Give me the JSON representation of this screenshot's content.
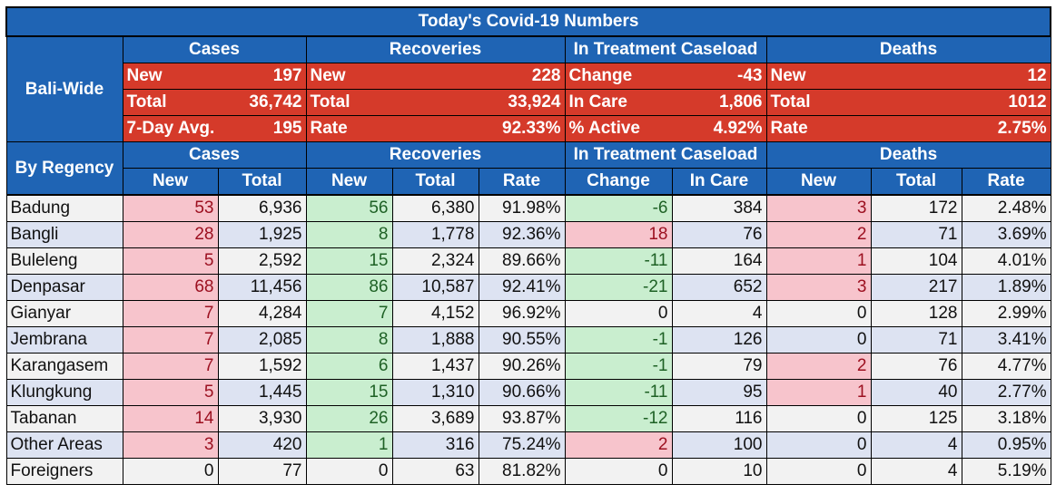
{
  "title": "Today's Covid-19 Numbers",
  "sections": {
    "cases": "Cases",
    "recoveries": "Recoveries",
    "treatment": "In Treatment Caseload",
    "deaths": "Deaths"
  },
  "bali_wide": {
    "label": "Bali-Wide",
    "rows": [
      {
        "cases_label": "New",
        "cases_value": "197",
        "rec_label": "New",
        "rec_value": "228",
        "treat_label": "Change",
        "treat_value": "-43",
        "deaths_label": "New",
        "deaths_value": "12"
      },
      {
        "cases_label": "Total",
        "cases_value": "36,742",
        "rec_label": "Total",
        "rec_value": "33,924",
        "treat_label": "In Care",
        "treat_value": "1,806",
        "deaths_label": "Total",
        "deaths_value": "1012"
      },
      {
        "cases_label": "7-Day Avg.",
        "cases_value": "195",
        "rec_label": "Rate",
        "rec_value": "92.33%",
        "treat_label": "% Active",
        "treat_value": "4.92%",
        "deaths_label": "Rate",
        "deaths_value": "2.75%"
      }
    ]
  },
  "by_regency": {
    "label": "By Regency",
    "columns": [
      "New",
      "Total",
      "New",
      "Total",
      "Rate",
      "Change",
      "In Care",
      "New",
      "Total",
      "Rate"
    ],
    "rows": [
      {
        "name": "Badung",
        "values": [
          "53",
          "6,936",
          "56",
          "6,380",
          "91.98%",
          "-6",
          "384",
          "3",
          "172",
          "2.48%"
        ],
        "hl": [
          "p",
          "",
          "g",
          "",
          "",
          "g",
          "",
          "p",
          "",
          ""
        ]
      },
      {
        "name": "Bangli",
        "values": [
          "28",
          "1,925",
          "8",
          "1,778",
          "92.36%",
          "18",
          "76",
          "2",
          "71",
          "3.69%"
        ],
        "hl": [
          "p",
          "",
          "g",
          "",
          "",
          "p",
          "",
          "p",
          "",
          ""
        ]
      },
      {
        "name": "Buleleng",
        "values": [
          "5",
          "2,592",
          "15",
          "2,324",
          "89.66%",
          "-11",
          "164",
          "1",
          "104",
          "4.01%"
        ],
        "hl": [
          "p",
          "",
          "g",
          "",
          "",
          "g",
          "",
          "p",
          "",
          ""
        ]
      },
      {
        "name": "Denpasar",
        "values": [
          "68",
          "11,456",
          "86",
          "10,587",
          "92.41%",
          "-21",
          "652",
          "3",
          "217",
          "1.89%"
        ],
        "hl": [
          "p",
          "",
          "g",
          "",
          "",
          "g",
          "",
          "p",
          "",
          ""
        ]
      },
      {
        "name": "Gianyar",
        "values": [
          "7",
          "4,284",
          "7",
          "4,152",
          "96.92%",
          "0",
          "4",
          "0",
          "128",
          "2.99%"
        ],
        "hl": [
          "p",
          "",
          "g",
          "",
          "",
          "",
          "",
          "",
          "",
          ""
        ]
      },
      {
        "name": "Jembrana",
        "values": [
          "7",
          "2,085",
          "8",
          "1,888",
          "90.55%",
          "-1",
          "126",
          "0",
          "71",
          "3.41%"
        ],
        "hl": [
          "p",
          "",
          "g",
          "",
          "",
          "g",
          "",
          "",
          "",
          ""
        ]
      },
      {
        "name": "Karangasem",
        "values": [
          "7",
          "1,592",
          "6",
          "1,437",
          "90.26%",
          "-1",
          "79",
          "2",
          "76",
          "4.77%"
        ],
        "hl": [
          "p",
          "",
          "g",
          "",
          "",
          "g",
          "",
          "p",
          "",
          ""
        ]
      },
      {
        "name": "Klungkung",
        "values": [
          "5",
          "1,445",
          "15",
          "1,310",
          "90.66%",
          "-11",
          "95",
          "1",
          "40",
          "2.77%"
        ],
        "hl": [
          "p",
          "",
          "g",
          "",
          "",
          "g",
          "",
          "p",
          "",
          ""
        ]
      },
      {
        "name": "Tabanan",
        "values": [
          "14",
          "3,930",
          "26",
          "3,689",
          "93.87%",
          "-12",
          "116",
          "0",
          "125",
          "3.18%"
        ],
        "hl": [
          "p",
          "",
          "g",
          "",
          "",
          "g",
          "",
          "",
          "",
          ""
        ]
      },
      {
        "name": "Other Areas",
        "values": [
          "3",
          "420",
          "1",
          "316",
          "75.24%",
          "2",
          "100",
          "0",
          "4",
          "0.95%"
        ],
        "hl": [
          "p",
          "",
          "g",
          "",
          "",
          "p",
          "",
          "",
          "",
          ""
        ]
      },
      {
        "name": "Foreigners",
        "values": [
          "0",
          "77",
          "0",
          "63",
          "81.82%",
          "0",
          "10",
          "0",
          "4",
          "5.19%"
        ],
        "hl": [
          "",
          "",
          "",
          "",
          "",
          "",
          "",
          "",
          "",
          ""
        ]
      }
    ]
  },
  "colors": {
    "header_blue": "#1f64b4",
    "summary_red": "#d53a2a",
    "highlight_pink": "#f7c4cc",
    "highlight_green": "#c9eecf",
    "stripe_grey": "#f2f2f2",
    "stripe_blue": "#dde3f2"
  }
}
